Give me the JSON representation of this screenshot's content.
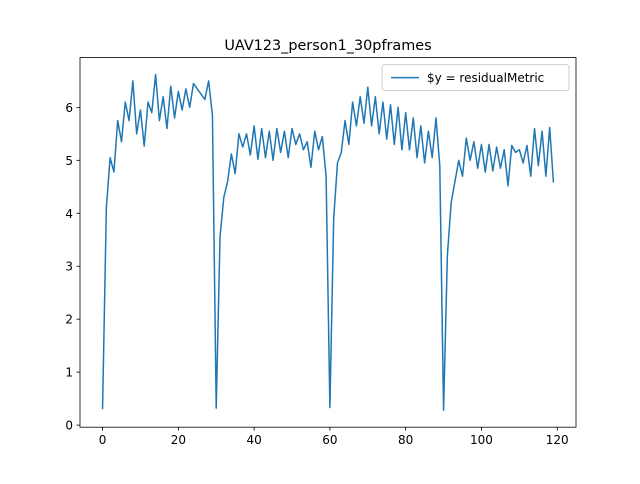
{
  "chart_data": {
    "type": "line",
    "title": "UAV123_person1_30pframes",
    "x": [
      0,
      1,
      2,
      3,
      4,
      5,
      6,
      7,
      8,
      9,
      10,
      11,
      12,
      13,
      14,
      15,
      16,
      17,
      18,
      19,
      20,
      21,
      22,
      23,
      24,
      25,
      26,
      27,
      28,
      29,
      30,
      31,
      32,
      33,
      34,
      35,
      36,
      37,
      38,
      39,
      40,
      41,
      42,
      43,
      44,
      45,
      46,
      47,
      48,
      49,
      50,
      51,
      52,
      53,
      54,
      55,
      56,
      57,
      58,
      59,
      60,
      61,
      62,
      63,
      64,
      65,
      66,
      67,
      68,
      69,
      70,
      71,
      72,
      73,
      74,
      75,
      76,
      77,
      78,
      79,
      80,
      81,
      82,
      83,
      84,
      85,
      86,
      87,
      88,
      89,
      90,
      91,
      92,
      93,
      94,
      95,
      96,
      97,
      98,
      99,
      100,
      101,
      102,
      103,
      104,
      105,
      106,
      107,
      108,
      109,
      110,
      111,
      112,
      113,
      114,
      115,
      116,
      117,
      118,
      119
    ],
    "series": [
      {
        "name": "$y = residualMetric",
        "color": "#1f77b4",
        "values": [
          0.3,
          4.1,
          5.05,
          4.78,
          5.75,
          5.35,
          6.1,
          5.75,
          6.5,
          5.5,
          5.95,
          5.27,
          6.1,
          5.9,
          6.62,
          5.75,
          6.2,
          5.6,
          6.4,
          5.8,
          6.3,
          5.95,
          6.35,
          6.0,
          6.45,
          6.35,
          6.25,
          6.15,
          6.5,
          5.85,
          0.32,
          3.55,
          4.3,
          4.6,
          5.12,
          4.75,
          5.5,
          5.25,
          5.5,
          5.1,
          5.65,
          5.02,
          5.6,
          5.05,
          5.55,
          5.0,
          5.6,
          5.15,
          5.55,
          5.05,
          5.6,
          5.3,
          5.5,
          5.2,
          5.35,
          4.87,
          5.55,
          5.2,
          5.45,
          4.7,
          0.33,
          3.9,
          4.95,
          5.15,
          5.75,
          5.3,
          6.1,
          5.65,
          6.2,
          5.7,
          6.38,
          5.65,
          6.2,
          5.5,
          6.1,
          5.4,
          6.05,
          5.3,
          6.0,
          5.2,
          5.9,
          5.2,
          5.8,
          5.05,
          5.65,
          4.95,
          5.55,
          5.05,
          5.8,
          4.9,
          0.28,
          3.2,
          4.2,
          4.6,
          5.0,
          4.7,
          5.42,
          5.0,
          5.35,
          4.85,
          5.3,
          4.78,
          5.3,
          4.8,
          5.25,
          4.85,
          5.2,
          4.52,
          5.28,
          5.15,
          5.2,
          4.95,
          5.28,
          4.7,
          5.6,
          4.9,
          5.55,
          4.7,
          5.62,
          4.58
        ]
      }
    ],
    "xlim": [
      -5.95,
      124.95
    ],
    "ylim": [
      -0.04,
      6.94
    ],
    "xticks": [
      0,
      20,
      40,
      60,
      80,
      100,
      120
    ],
    "yticks": [
      0,
      1,
      2,
      3,
      4,
      5,
      6
    ],
    "legend": "upper right",
    "grid": false
  }
}
